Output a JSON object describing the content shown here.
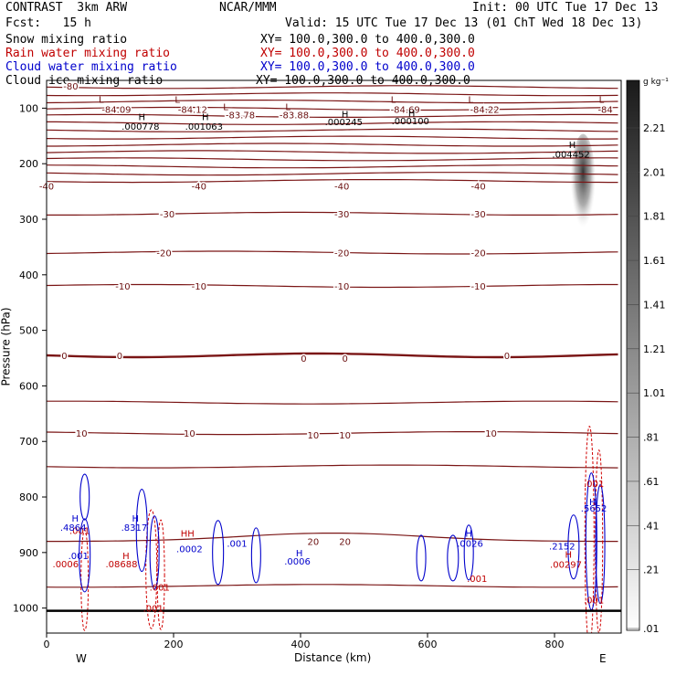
{
  "header": {
    "model": "CONTRAST  3km ARW",
    "org": "NCAR/MMM",
    "init": "Init: 00 UTC Tue 17 Dec 13",
    "fcst": "Fcst:   15 h",
    "valid": "Valid: 15 UTC Tue 17 Dec 13 (01 ChT Wed 18 Dec 13)"
  },
  "fields": [
    {
      "name": "Snow mixing ratio",
      "xy": "XY= 100.0,300.0 to 400.0,300.0",
      "color": "#000000"
    },
    {
      "name": "Rain water mixing ratio",
      "xy": "XY= 100.0,300.0 to 400.0,300.0",
      "color": "#c00000"
    },
    {
      "name": "Cloud water mixing ratio",
      "xy": "XY= 100.0,300.0 to 400.0,300.0",
      "color": "#0000cc"
    },
    {
      "name": "Cloud ice mixing ratio",
      "xy": "XY= 100.0,300.0 to 400.0,300.0",
      "color": "#000000"
    }
  ],
  "chart_data": {
    "type": "cross-section contour",
    "xlabel": "Distance (km)",
    "ylabel": "Pressure (hPa)",
    "xlim": [
      0,
      905
    ],
    "ylim": [
      1045,
      50
    ],
    "xticks": [
      0,
      200,
      400,
      600,
      800
    ],
    "yticks": [
      100,
      200,
      300,
      400,
      500,
      600,
      700,
      800,
      900,
      1000
    ],
    "end_labels": {
      "west": "W",
      "east": "E"
    },
    "temperature_labels": [
      {
        "text": "-80",
        "x": 38,
        "p": 60
      },
      {
        "text": "-84.09",
        "x": 110,
        "p": 102
      },
      {
        "text": "-84.12",
        "x": 230,
        "p": 102
      },
      {
        "text": "-83.78",
        "x": 305,
        "p": 112
      },
      {
        "text": "-83.88",
        "x": 390,
        "p": 112
      },
      {
        "text": "-84.69",
        "x": 565,
        "p": 102
      },
      {
        "text": "-84.22",
        "x": 690,
        "p": 102
      },
      {
        "text": "-84",
        "x": 880,
        "p": 102
      },
      {
        "text": "-40",
        "x": 0,
        "p": 240
      },
      {
        "text": "-40",
        "x": 240,
        "p": 240
      },
      {
        "text": "-40",
        "x": 465,
        "p": 240
      },
      {
        "text": "-40",
        "x": 680,
        "p": 240
      },
      {
        "text": "-30",
        "x": 190,
        "p": 290
      },
      {
        "text": "-30",
        "x": 465,
        "p": 290
      },
      {
        "text": "-30",
        "x": 680,
        "p": 290
      },
      {
        "text": "-20",
        "x": 185,
        "p": 360
      },
      {
        "text": "-20",
        "x": 465,
        "p": 360
      },
      {
        "text": "-20",
        "x": 680,
        "p": 360
      },
      {
        "text": "-10",
        "x": 120,
        "p": 420
      },
      {
        "text": "-10",
        "x": 240,
        "p": 420
      },
      {
        "text": "-10",
        "x": 465,
        "p": 420
      },
      {
        "text": "-10",
        "x": 680,
        "p": 420
      },
      {
        "text": "0",
        "x": 28,
        "p": 545
      },
      {
        "text": "0",
        "x": 115,
        "p": 545
      },
      {
        "text": "0",
        "x": 405,
        "p": 550
      },
      {
        "text": "0",
        "x": 470,
        "p": 550
      },
      {
        "text": "0",
        "x": 725,
        "p": 545
      },
      {
        "text": "10",
        "x": 55,
        "p": 685
      },
      {
        "text": "10",
        "x": 225,
        "p": 685
      },
      {
        "text": "10",
        "x": 420,
        "p": 688
      },
      {
        "text": "10",
        "x": 470,
        "p": 688
      },
      {
        "text": "10",
        "x": 700,
        "p": 685
      },
      {
        "text": "20",
        "x": 420,
        "p": 880
      },
      {
        "text": "20",
        "x": 470,
        "p": 880
      }
    ],
    "snow_markers": [
      {
        "text": "L",
        "x": 86,
        "p": 84
      },
      {
        "text": "L",
        "x": 206,
        "p": 84
      },
      {
        "text": "L",
        "x": 282,
        "p": 97
      },
      {
        "text": "L",
        "x": 380,
        "p": 97
      },
      {
        "text": "L",
        "x": 546,
        "p": 84
      },
      {
        "text": "L",
        "x": 668,
        "p": 84
      },
      {
        "text": "L",
        "x": 874,
        "p": 84
      }
    ],
    "ice_labels": [
      {
        "text": "H",
        "x": 150,
        "p": 115
      },
      {
        "text": ".000778",
        "x": 148,
        "p": 132
      },
      {
        "text": "H",
        "x": 250,
        "p": 115
      },
      {
        "text": ".001063",
        "x": 248,
        "p": 132
      },
      {
        "text": "H",
        "x": 470,
        "p": 110
      },
      {
        "text": ".000245",
        "x": 468,
        "p": 124
      },
      {
        "text": "H",
        "x": 575,
        "p": 108
      },
      {
        "text": ".000100",
        "x": 573,
        "p": 122
      },
      {
        "text": "H",
        "x": 828,
        "p": 165
      },
      {
        "text": ".004452",
        "x": 826,
        "p": 182
      }
    ],
    "rain_labels": [
      {
        "text": ".001",
        "x": 52,
        "p": 860
      },
      {
        "text": ".0006",
        "x": 30,
        "p": 920
      },
      {
        "text": "H",
        "x": 125,
        "p": 905
      },
      {
        "text": ".08688",
        "x": 118,
        "p": 920
      },
      {
        "text": "HH",
        "x": 222,
        "p": 865
      },
      {
        "text": ".001",
        "x": 178,
        "p": 962
      },
      {
        "text": ".001",
        "x": 168,
        "p": 1000
      },
      {
        "text": "H",
        "x": 822,
        "p": 903
      },
      {
        "text": ".00297",
        "x": 818,
        "p": 921
      },
      {
        "text": ".001",
        "x": 678,
        "p": 946
      },
      {
        "text": ".001",
        "x": 862,
        "p": 775
      },
      {
        "text": ".001",
        "x": 862,
        "p": 985
      }
    ],
    "cloud_water_labels": [
      {
        "text": "H",
        "x": 45,
        "p": 838
      },
      {
        "text": ".4864",
        "x": 42,
        "p": 854
      },
      {
        "text": "H",
        "x": 140,
        "p": 838
      },
      {
        "text": ".8317",
        "x": 138,
        "p": 854
      },
      {
        "text": ".001",
        "x": 50,
        "p": 905
      },
      {
        "text": ".0002",
        "x": 225,
        "p": 893
      },
      {
        "text": ".001",
        "x": 300,
        "p": 883
      },
      {
        "text": "H",
        "x": 398,
        "p": 900
      },
      {
        "text": ".0006",
        "x": 395,
        "p": 915
      },
      {
        "text": "H",
        "x": 665,
        "p": 865
      },
      {
        "text": ".0026",
        "x": 667,
        "p": 883
      },
      {
        "text": ".2152",
        "x": 812,
        "p": 888
      },
      {
        "text": "H",
        "x": 860,
        "p": 808
      },
      {
        "text": ".5652",
        "x": 862,
        "p": 820
      }
    ],
    "colorbar": {
      "unit": "g kg⁻¹",
      "labels": [
        "2.21",
        "2.01",
        "1.81",
        "1.61",
        "1.41",
        "1.21",
        "1.01",
        ".81",
        ".61",
        ".41",
        ".21",
        ".01"
      ]
    }
  }
}
